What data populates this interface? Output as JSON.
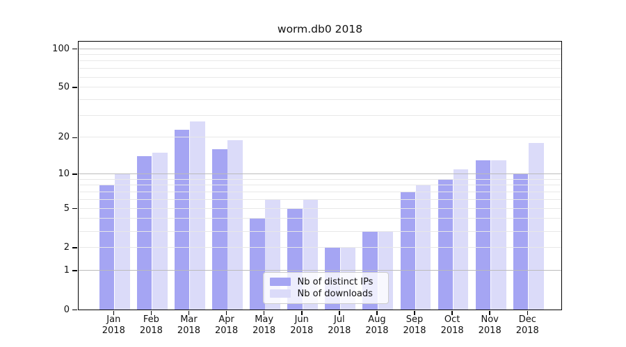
{
  "title": "worm.db0 2018",
  "chart_data": {
    "type": "bar",
    "title": "worm.db0 2018",
    "categories": [
      "Jan 2018",
      "Feb 2018",
      "Mar 2018",
      "Apr 2018",
      "May 2018",
      "Jun 2018",
      "Jul 2018",
      "Aug 2018",
      "Sep 2018",
      "Oct 2018",
      "Nov 2018",
      "Dec 2018"
    ],
    "month_labels": [
      "Jan",
      "Feb",
      "Mar",
      "Apr",
      "May",
      "Jun",
      "Jul",
      "Aug",
      "Sep",
      "Oct",
      "Nov",
      "Dec"
    ],
    "year_label": "2018",
    "series": [
      {
        "name": "Nb of distinct IPs",
        "color": "#a5a5f3",
        "values": [
          8,
          14,
          23,
          16,
          4,
          5,
          2,
          3,
          7,
          9,
          13,
          10
        ]
      },
      {
        "name": "Nb of downloads",
        "color": "#dbdbf9",
        "values": [
          10,
          15,
          27,
          19,
          6,
          6,
          2,
          3,
          8,
          11,
          13,
          18
        ]
      }
    ],
    "yscale": "log1p",
    "ylim": [
      0,
      101
    ],
    "y_ticks": [
      0,
      1,
      2,
      5,
      10,
      20,
      50,
      100
    ],
    "y_major_gridlines": [
      1,
      10,
      100
    ],
    "y_minor_gridlines": [
      2,
      3,
      4,
      5,
      6,
      7,
      8,
      9,
      20,
      30,
      40,
      50,
      60,
      70,
      80,
      90
    ],
    "grid": "both",
    "legend_position": "lower-center",
    "colors": {
      "major_grid": "#bbbbbb",
      "minor_grid": "#e8e8e8",
      "spine": "#000000",
      "text": "#111111",
      "background": "#ffffff"
    }
  }
}
